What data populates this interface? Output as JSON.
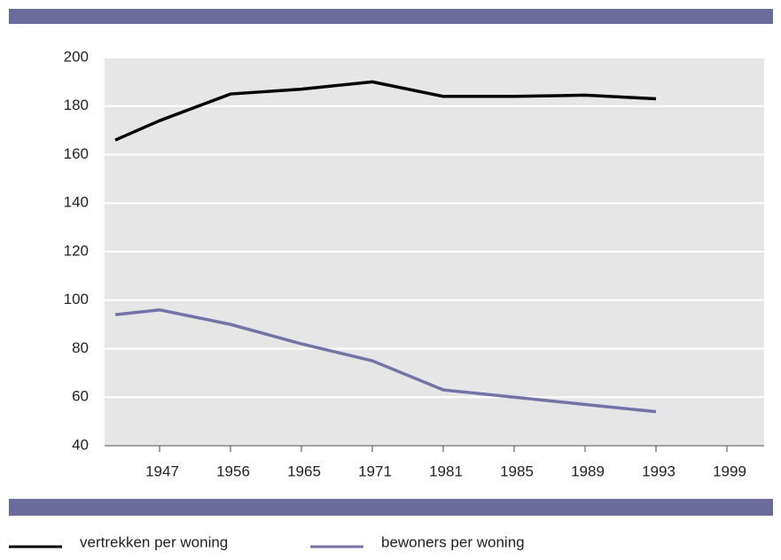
{
  "chart_data": {
    "type": "line",
    "categories": [
      null,
      "1947",
      "1956",
      "1965",
      "1971",
      "1981",
      "1985",
      "1989",
      "1993",
      "1999"
    ],
    "series": [
      {
        "name": "vertrekken per woning",
        "color": "#000000",
        "values": [
          166,
          174,
          185,
          187,
          190,
          184,
          184,
          184.5,
          183,
          null
        ]
      },
      {
        "name": "bewoners per woning",
        "color": "#7373a6",
        "values": [
          94,
          96,
          90,
          82,
          75,
          63,
          60,
          57,
          54,
          null
        ]
      }
    ],
    "ylim": [
      40,
      200
    ],
    "yticks": [
      40,
      60,
      80,
      100,
      120,
      140,
      160,
      180,
      200
    ],
    "grid": true
  }
}
